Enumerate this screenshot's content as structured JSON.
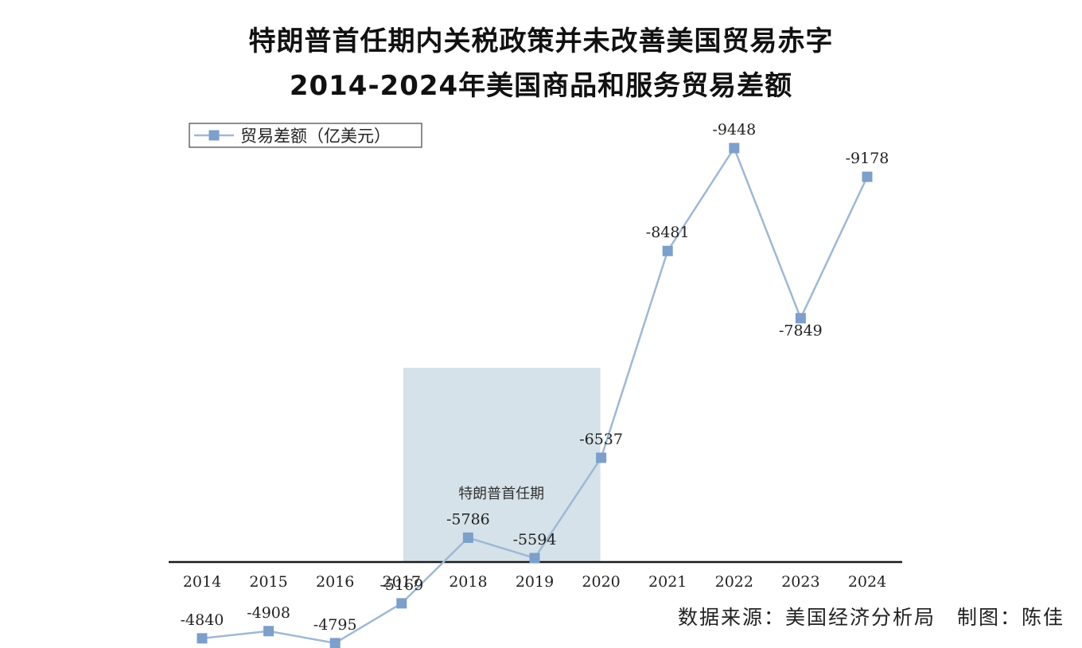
{
  "title_line1": "特朗普首任期内关税政策并未改善美国贸易赤字",
  "title_line2": "2014-2024年美国商品和服务贸易差额",
  "credit": "数据来源：美国经济分析局　制图：陈佳",
  "colors": {
    "line": "#9fb8d6",
    "marker": "#7c9fcb",
    "shade": "#d5e2e9",
    "axis": "#1a1a1a"
  },
  "chart_data": {
    "type": "line",
    "x": [
      "2014",
      "2015",
      "2016",
      "2017",
      "2018",
      "2019",
      "2020",
      "2021",
      "2022",
      "2023",
      "2024"
    ],
    "series": [
      {
        "name": "贸易差额（亿美元）",
        "values": [
          -4840,
          -4908,
          -4795,
          -5169,
          -5786,
          -5594,
          -6537,
          -8481,
          -9448,
          -7849,
          -9178
        ],
        "labels": [
          "-4840",
          "-4908",
          "-4795",
          "-5169",
          "-5786",
          "-5594",
          "-6537",
          "-8481",
          "-9448",
          "-7849",
          "-9178"
        ]
      }
    ],
    "shaded_region": {
      "from": "2017",
      "to": "2020",
      "label": "特朗普首任期"
    },
    "legend_position": "top-left",
    "grid": false
  }
}
